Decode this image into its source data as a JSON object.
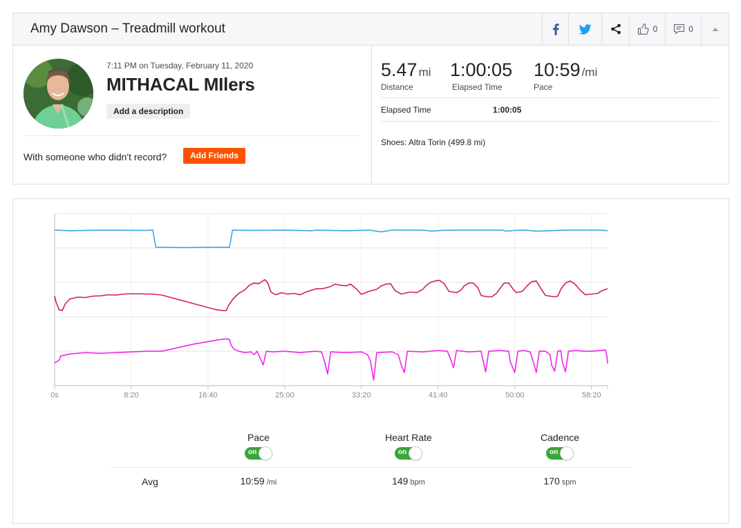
{
  "header": {
    "title": "Amy Dawson – Treadmill workout",
    "kudos_count": "0",
    "comments_count": "0"
  },
  "activity": {
    "datetime": "7:11 PM on Tuesday, February 11, 2020",
    "name": "MITHACAL MIlers",
    "add_description": "Add a description",
    "friends_prompt": "With someone who didn't record?",
    "add_friends": "Add Friends"
  },
  "stats": {
    "distance": {
      "value": "5.47",
      "unit": "mi",
      "label": "Distance"
    },
    "elapsed": {
      "value": "1:00:05",
      "label": "Elapsed Time"
    },
    "pace": {
      "value": "10:59",
      "unit": "/mi",
      "label": "Pace"
    },
    "more": {
      "label": "Elapsed Time",
      "value": "1:00:05"
    },
    "shoes": "Shoes: Altra Torin (499.8 mi)"
  },
  "colors": {
    "pace": "#3ba9df",
    "heart_rate": "#d11f5a",
    "cadence": "#ee26ea",
    "toggle_on": "#3aa63a",
    "add_friends": "#fc5200"
  },
  "chart_data": {
    "type": "line",
    "x_unit": "elapsed time (seconds)",
    "xlim": [
      0,
      3605
    ],
    "x_tick_labels": [
      "0s",
      "8:20",
      "16:40",
      "25:00",
      "33:20",
      "41:40",
      "50:00",
      "58:20"
    ],
    "x_tick_values": [
      0,
      500,
      1000,
      1500,
      2000,
      2500,
      3000,
      3500
    ],
    "grid": true,
    "legend": "below",
    "series": [
      {
        "name": "Pace",
        "key": "pace",
        "band": [
          0,
          0.5
        ],
        "points": [
          [
            0,
            0.52
          ],
          [
            100,
            0.5
          ],
          [
            300,
            0.52
          ],
          [
            600,
            0.51
          ],
          [
            640,
            0.52
          ],
          [
            660,
            0.02
          ],
          [
            700,
            0.02
          ],
          [
            850,
            0.01
          ],
          [
            1000,
            0.02
          ],
          [
            1120,
            0.02
          ],
          [
            1140,
            0.02
          ],
          [
            1160,
            0.52
          ],
          [
            1300,
            0.51
          ],
          [
            1500,
            0.52
          ],
          [
            1680,
            0.5
          ],
          [
            1700,
            0.52
          ],
          [
            1900,
            0.5
          ],
          [
            2050,
            0.52
          ],
          [
            2130,
            0.47
          ],
          [
            2200,
            0.52
          ],
          [
            2400,
            0.52
          ],
          [
            2460,
            0.49
          ],
          [
            2520,
            0.51
          ],
          [
            2600,
            0.52
          ],
          [
            2920,
            0.52
          ],
          [
            2940,
            0.49
          ],
          [
            3000,
            0.51
          ],
          [
            3060,
            0.52
          ],
          [
            3140,
            0.49
          ],
          [
            3220,
            0.5
          ],
          [
            3330,
            0.52
          ],
          [
            3560,
            0.52
          ],
          [
            3605,
            0.5
          ]
        ]
      },
      {
        "name": "Heart Rate",
        "key": "heart_rate",
        "band": [
          0,
          0.5
        ],
        "points": [
          [
            0,
            0.6
          ],
          [
            10,
            0.42
          ],
          [
            30,
            0.2
          ],
          [
            50,
            0.18
          ],
          [
            70,
            0.38
          ],
          [
            100,
            0.52
          ],
          [
            150,
            0.57
          ],
          [
            200,
            0.56
          ],
          [
            250,
            0.6
          ],
          [
            300,
            0.61
          ],
          [
            350,
            0.64
          ],
          [
            400,
            0.63
          ],
          [
            450,
            0.66
          ],
          [
            500,
            0.67
          ],
          [
            560,
            0.67
          ],
          [
            600,
            0.66
          ],
          [
            640,
            0.66
          ],
          [
            700,
            0.63
          ],
          [
            750,
            0.57
          ],
          [
            800,
            0.51
          ],
          [
            850,
            0.45
          ],
          [
            900,
            0.39
          ],
          [
            950,
            0.33
          ],
          [
            1000,
            0.27
          ],
          [
            1050,
            0.21
          ],
          [
            1100,
            0.18
          ],
          [
            1120,
            0.18
          ],
          [
            1130,
            0.3
          ],
          [
            1160,
            0.5
          ],
          [
            1200,
            0.68
          ],
          [
            1240,
            0.78
          ],
          [
            1270,
            0.92
          ],
          [
            1300,
            0.98
          ],
          [
            1330,
            0.96
          ],
          [
            1350,
            1.02
          ],
          [
            1370,
            1.08
          ],
          [
            1390,
            0.98
          ],
          [
            1410,
            0.72
          ],
          [
            1440,
            0.64
          ],
          [
            1480,
            0.7
          ],
          [
            1520,
            0.66
          ],
          [
            1560,
            0.68
          ],
          [
            1600,
            0.64
          ],
          [
            1640,
            0.72
          ],
          [
            1700,
            0.81
          ],
          [
            1750,
            0.82
          ],
          [
            1800,
            0.88
          ],
          [
            1830,
            0.95
          ],
          [
            1860,
            0.92
          ],
          [
            1900,
            0.9
          ],
          [
            1930,
            0.95
          ],
          [
            1970,
            0.8
          ],
          [
            2000,
            0.65
          ],
          [
            2050,
            0.74
          ],
          [
            2100,
            0.8
          ],
          [
            2130,
            0.9
          ],
          [
            2160,
            0.95
          ],
          [
            2190,
            0.96
          ],
          [
            2220,
            0.76
          ],
          [
            2260,
            0.66
          ],
          [
            2320,
            0.72
          ],
          [
            2360,
            0.7
          ],
          [
            2400,
            0.8
          ],
          [
            2420,
            0.9
          ],
          [
            2450,
            1.0
          ],
          [
            2480,
            1.04
          ],
          [
            2510,
            1.06
          ],
          [
            2540,
            0.96
          ],
          [
            2570,
            0.74
          ],
          [
            2620,
            0.7
          ],
          [
            2650,
            0.78
          ],
          [
            2670,
            0.9
          ],
          [
            2700,
            0.98
          ],
          [
            2730,
            0.98
          ],
          [
            2760,
            0.84
          ],
          [
            2780,
            0.62
          ],
          [
            2820,
            0.58
          ],
          [
            2850,
            0.58
          ],
          [
            2880,
            0.68
          ],
          [
            2900,
            0.8
          ],
          [
            2930,
            0.98
          ],
          [
            2960,
            0.98
          ],
          [
            2990,
            0.8
          ],
          [
            3010,
            0.7
          ],
          [
            3050,
            0.74
          ],
          [
            3080,
            0.9
          ],
          [
            3110,
            1.02
          ],
          [
            3140,
            1.04
          ],
          [
            3170,
            0.82
          ],
          [
            3200,
            0.62
          ],
          [
            3260,
            0.58
          ],
          [
            3280,
            0.6
          ],
          [
            3300,
            0.8
          ],
          [
            3330,
            0.98
          ],
          [
            3360,
            1.04
          ],
          [
            3390,
            0.96
          ],
          [
            3430,
            0.76
          ],
          [
            3460,
            0.64
          ],
          [
            3500,
            0.66
          ],
          [
            3540,
            0.68
          ],
          [
            3570,
            0.76
          ],
          [
            3605,
            0.82
          ]
        ]
      },
      {
        "name": "Cadence",
        "key": "cadence",
        "band": [
          0,
          0.5
        ],
        "points": [
          [
            0,
            0.66
          ],
          [
            15,
            0.7
          ],
          [
            30,
            0.74
          ],
          [
            40,
            0.86
          ],
          [
            60,
            0.88
          ],
          [
            100,
            0.92
          ],
          [
            200,
            0.96
          ],
          [
            300,
            0.94
          ],
          [
            400,
            0.96
          ],
          [
            500,
            0.98
          ],
          [
            600,
            1.0
          ],
          [
            660,
            1.0
          ],
          [
            700,
            1.0
          ],
          [
            800,
            1.1
          ],
          [
            900,
            1.2
          ],
          [
            1000,
            1.28
          ],
          [
            1080,
            1.34
          ],
          [
            1120,
            1.36
          ],
          [
            1140,
            1.34
          ],
          [
            1150,
            1.18
          ],
          [
            1170,
            1.06
          ],
          [
            1200,
            1.0
          ],
          [
            1240,
            0.96
          ],
          [
            1280,
            0.98
          ],
          [
            1300,
            0.9
          ],
          [
            1320,
            1.0
          ],
          [
            1340,
            0.8
          ],
          [
            1360,
            0.6
          ],
          [
            1380,
            1.0
          ],
          [
            1420,
            0.98
          ],
          [
            1500,
            1.0
          ],
          [
            1600,
            0.96
          ],
          [
            1700,
            1.0
          ],
          [
            1740,
            0.98
          ],
          [
            1760,
            0.7
          ],
          [
            1780,
            0.34
          ],
          [
            1800,
            0.98
          ],
          [
            1900,
            0.96
          ],
          [
            2000,
            0.98
          ],
          [
            2040,
            0.9
          ],
          [
            2060,
            0.7
          ],
          [
            2080,
            0.16
          ],
          [
            2100,
            0.96
          ],
          [
            2200,
            0.98
          ],
          [
            2240,
            0.9
          ],
          [
            2260,
            0.6
          ],
          [
            2280,
            0.38
          ],
          [
            2300,
            1.0
          ],
          [
            2400,
            0.98
          ],
          [
            2500,
            1.02
          ],
          [
            2560,
            1.0
          ],
          [
            2580,
            0.8
          ],
          [
            2600,
            0.52
          ],
          [
            2620,
            1.02
          ],
          [
            2700,
            0.98
          ],
          [
            2780,
            1.0
          ],
          [
            2790,
            0.8
          ],
          [
            2810,
            0.4
          ],
          [
            2830,
            1.0
          ],
          [
            2900,
            1.02
          ],
          [
            2960,
            1.0
          ],
          [
            2970,
            0.7
          ],
          [
            3000,
            0.38
          ],
          [
            3020,
            1.0
          ],
          [
            3060,
            1.02
          ],
          [
            3100,
            0.98
          ],
          [
            3120,
            0.7
          ],
          [
            3140,
            0.38
          ],
          [
            3160,
            1.0
          ],
          [
            3200,
            1.0
          ],
          [
            3230,
            0.9
          ],
          [
            3240,
            0.6
          ],
          [
            3260,
            0.42
          ],
          [
            3280,
            1.0
          ],
          [
            3300,
            1.02
          ],
          [
            3310,
            0.7
          ],
          [
            3330,
            0.4
          ],
          [
            3350,
            1.0
          ],
          [
            3400,
            1.02
          ],
          [
            3450,
            1.0
          ],
          [
            3500,
            1.0
          ],
          [
            3560,
            1.02
          ],
          [
            3590,
            1.04
          ],
          [
            3600,
            0.88
          ],
          [
            3605,
            0.64
          ]
        ]
      }
    ],
    "averages": {
      "label": "Avg",
      "pace": {
        "value": "10:59",
        "unit": "/mi"
      },
      "heart_rate": {
        "value": "149",
        "unit": "bpm"
      },
      "cadence": {
        "value": "170",
        "unit": "spm"
      }
    },
    "toggle_label": "on"
  }
}
